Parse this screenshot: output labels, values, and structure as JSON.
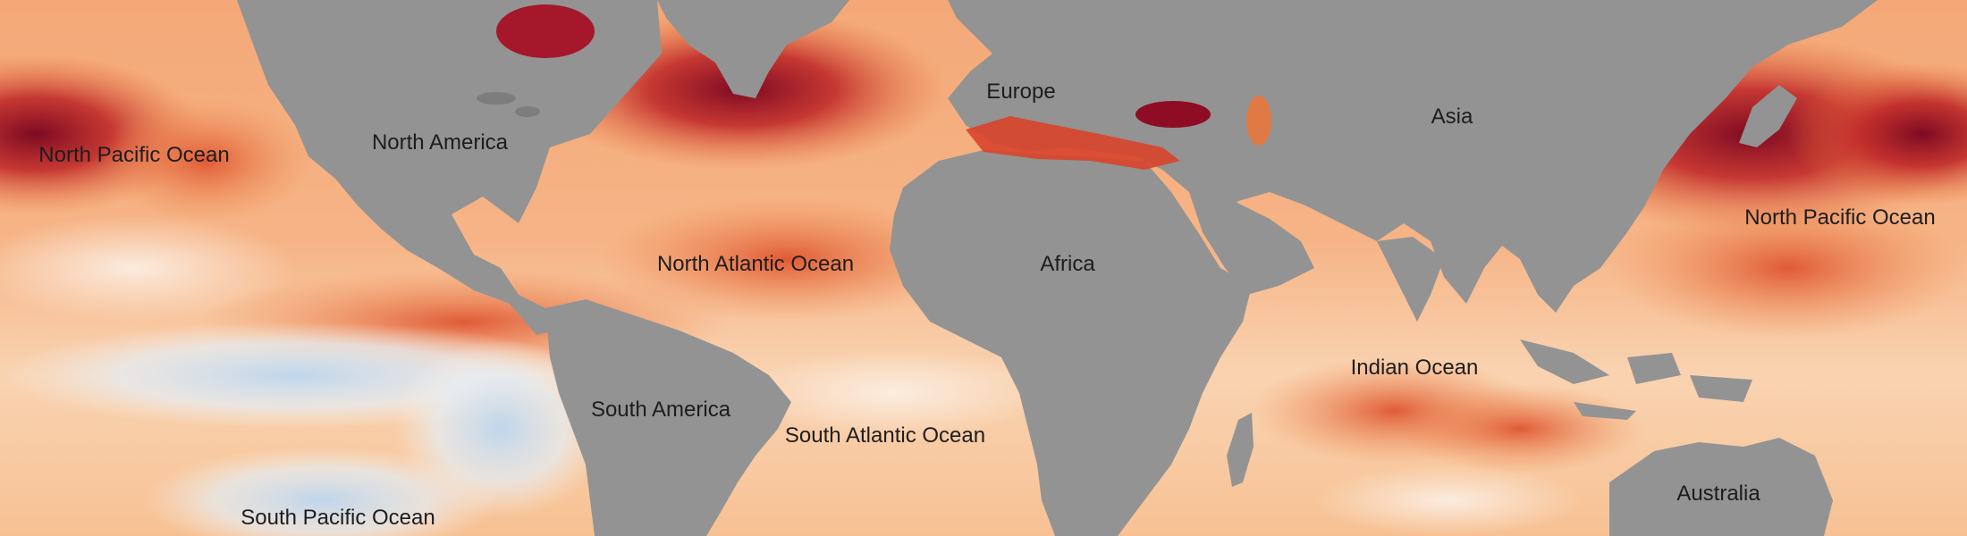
{
  "map": {
    "colors": {
      "land": "#939393",
      "ocean_warm_light": "#f7c79b",
      "ocean_warm": "#ef8a4f",
      "ocean_hot": "#d9452b",
      "ocean_extreme": "#8e0c24",
      "ocean_cool": "#d9e8f5",
      "ocean_cold": "#9cc3e6"
    },
    "labels": {
      "north_pacific_west": "North Pacific Ocean",
      "north_america": "North America",
      "europe": "Europe",
      "asia": "Asia",
      "north_pacific_east": "North Pacific Ocean",
      "north_atlantic": "North Atlantic Ocean",
      "africa": "Africa",
      "indian_ocean": "Indian Ocean",
      "south_america": "South America",
      "south_atlantic": "South Atlantic Ocean",
      "south_pacific": "South Pacific Ocean",
      "australia": "Australia"
    }
  }
}
